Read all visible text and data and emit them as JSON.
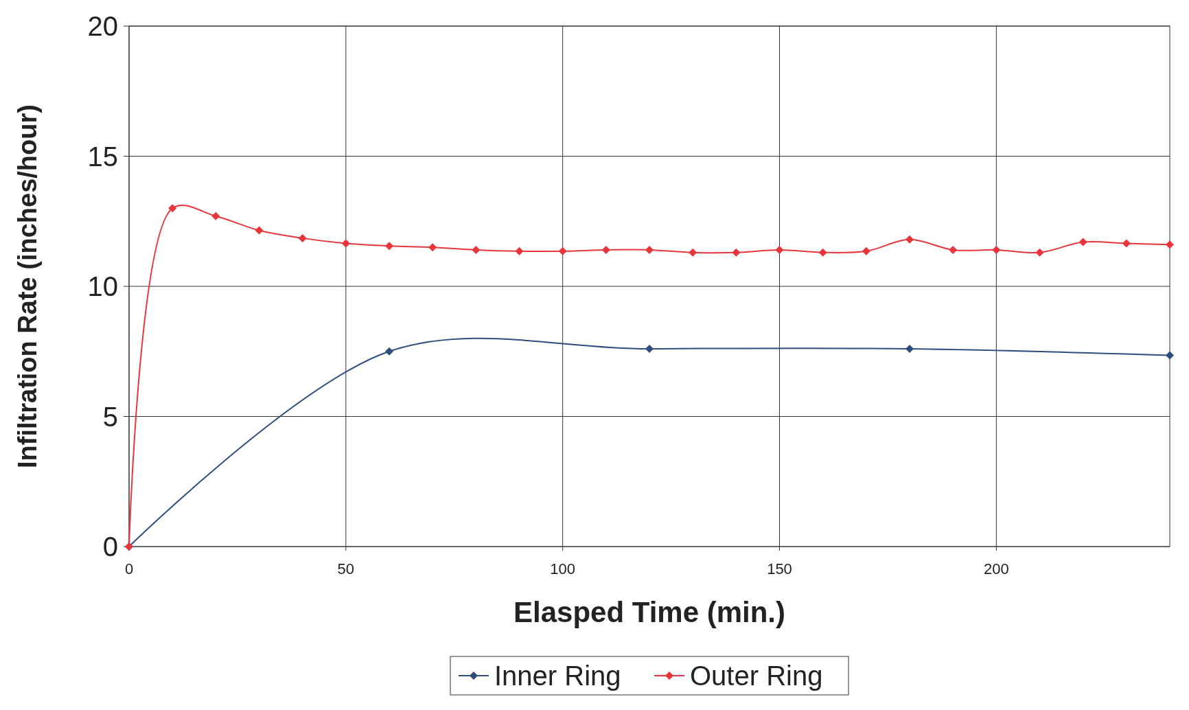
{
  "chart_data": {
    "type": "line",
    "xlabel": "Elasped Time (min.)",
    "ylabel": "Infiltration Rate (inches/hour)",
    "xlim": [
      0,
      240
    ],
    "xticks": [
      0,
      50,
      100,
      150,
      200
    ],
    "ylim": [
      0,
      20
    ],
    "yticks": [
      0,
      5,
      10,
      15,
      20
    ],
    "grid": true,
    "legend": "bottom",
    "marker": "diamond",
    "series": [
      {
        "name": "Inner Ring",
        "color": "#2e4d7f",
        "x": [
          0,
          60,
          120,
          180,
          240
        ],
        "values": [
          0,
          7.5,
          7.6,
          7.6,
          7.35
        ]
      },
      {
        "name": "Outer Ring",
        "color": "#e8353c",
        "x": [
          0,
          10,
          20,
          30,
          40,
          50,
          60,
          70,
          80,
          90,
          100,
          110,
          120,
          130,
          140,
          150,
          160,
          170,
          180,
          190,
          200,
          210,
          220,
          230,
          240
        ],
        "values": [
          0,
          13.0,
          12.7,
          12.15,
          11.85,
          11.65,
          11.55,
          11.5,
          11.4,
          11.35,
          11.35,
          11.4,
          11.4,
          11.3,
          11.3,
          11.4,
          11.3,
          11.35,
          11.8,
          11.4,
          11.4,
          11.3,
          11.7,
          11.65,
          11.6
        ]
      }
    ]
  }
}
